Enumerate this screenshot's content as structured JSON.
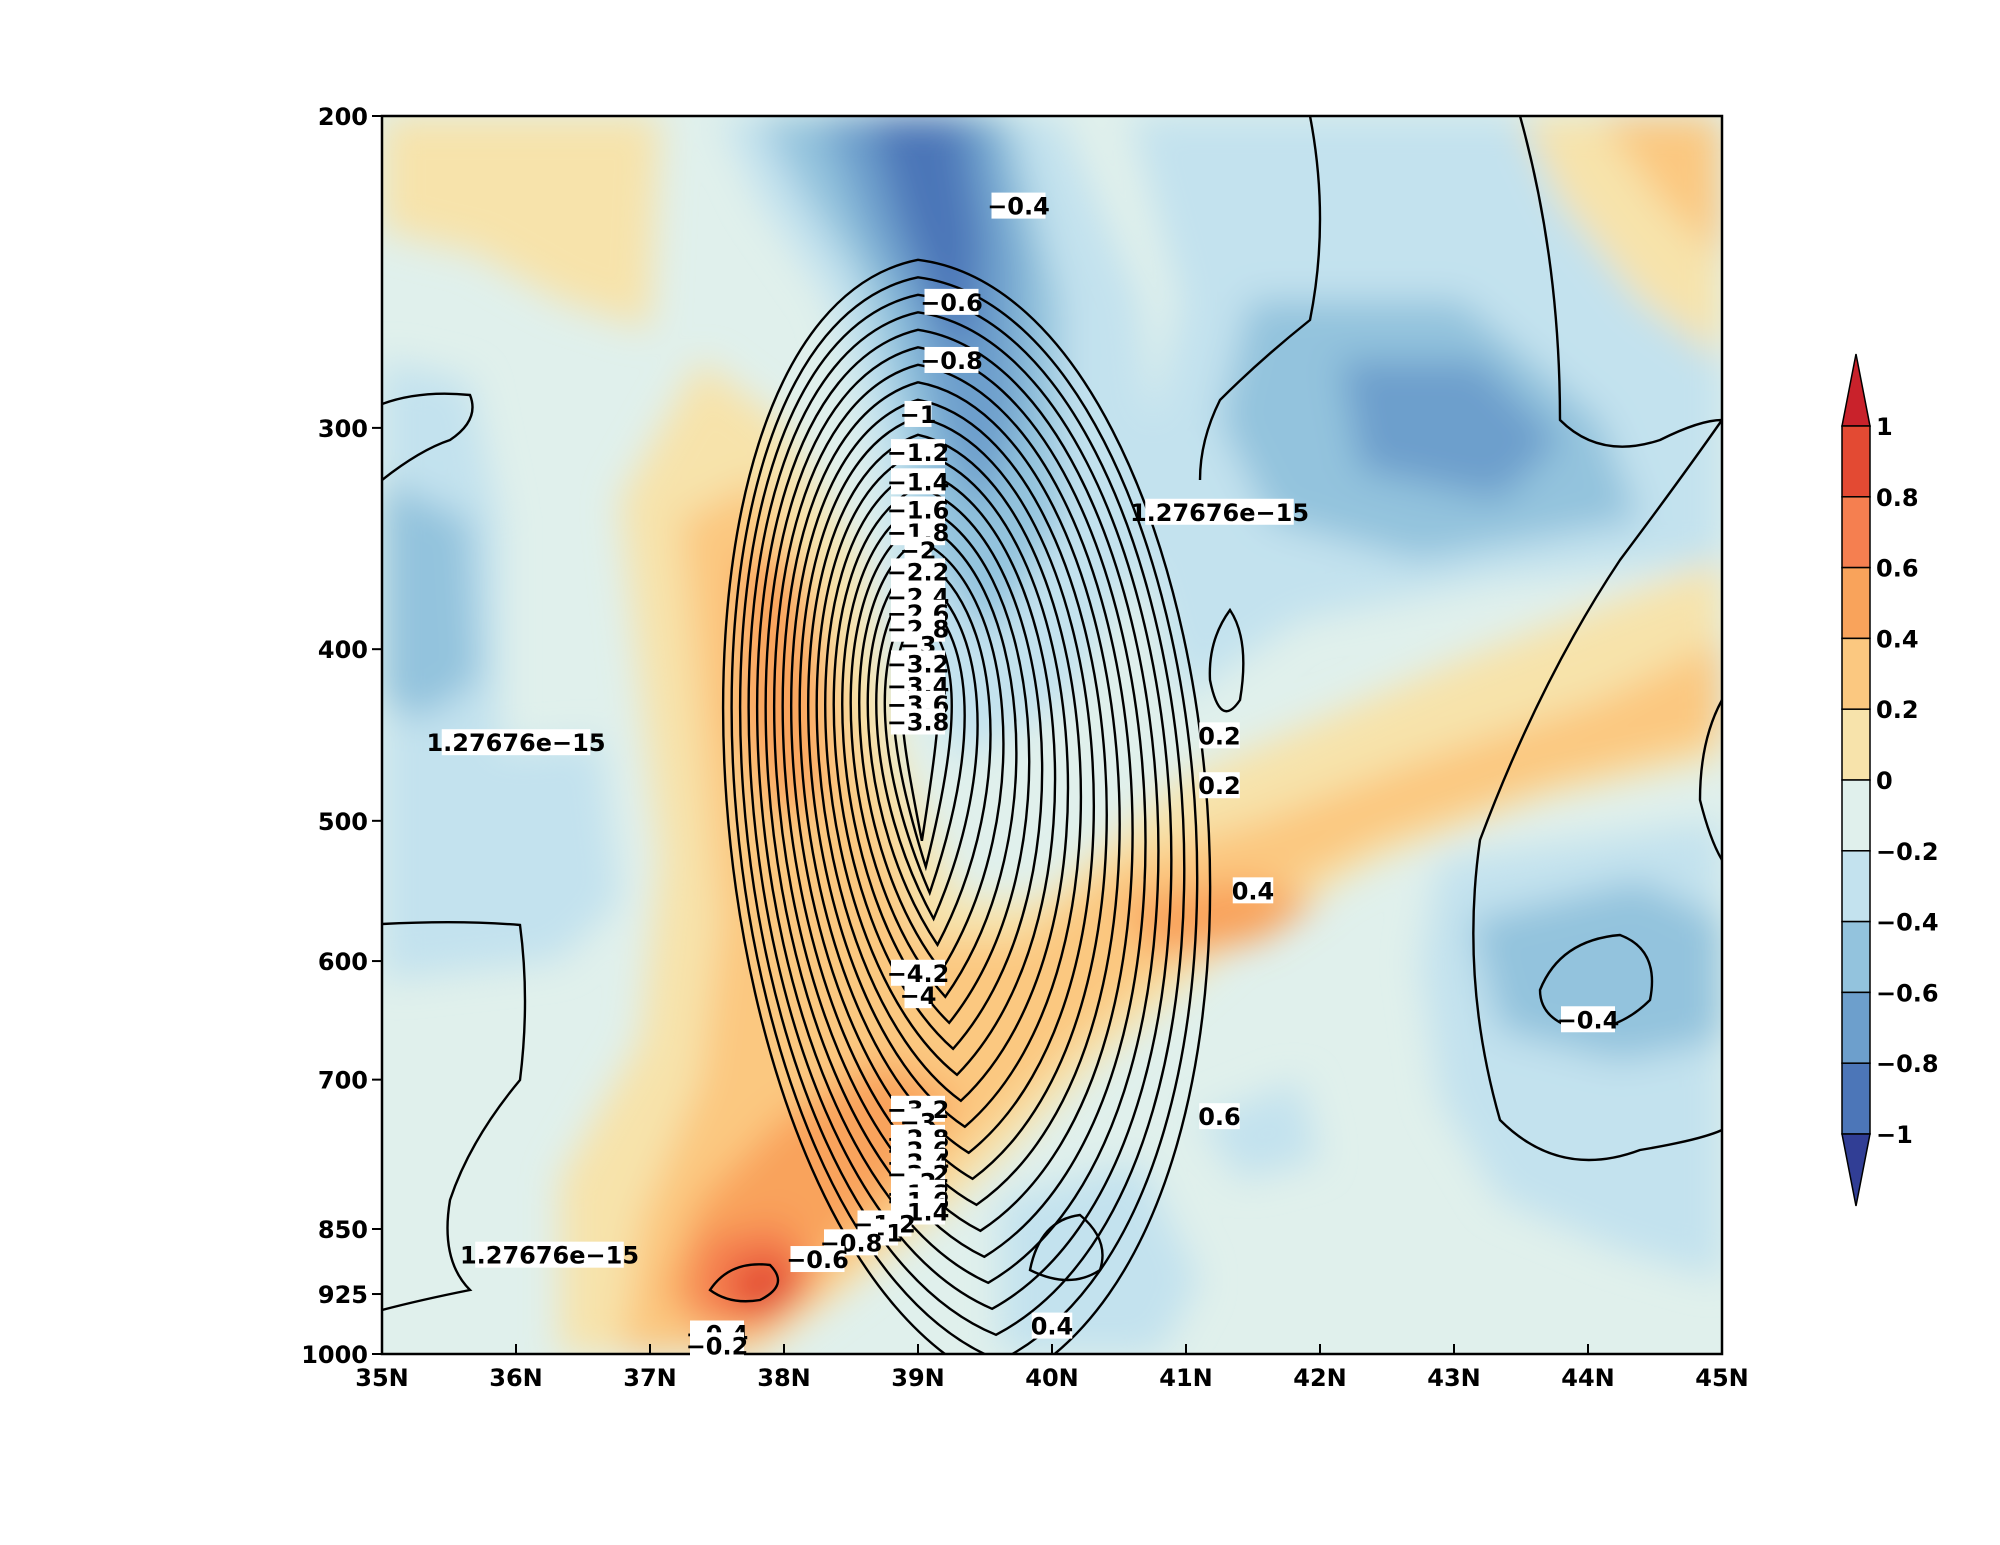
{
  "chart_data": {
    "type": "heatmap",
    "title": "",
    "xlabel": "",
    "ylabel": "",
    "x_axis": {
      "range": [
        35,
        45
      ],
      "ticks": [
        35,
        36,
        37,
        38,
        39,
        40,
        41,
        42,
        43,
        44,
        45
      ],
      "tick_labels": [
        "35N",
        "36N",
        "37N",
        "38N",
        "39N",
        "40N",
        "41N",
        "42N",
        "43N",
        "44N",
        "45N"
      ]
    },
    "y_axis": {
      "scale": "log-pressure",
      "direction": "inverted",
      "range": [
        1000,
        200
      ],
      "ticks": [
        200,
        300,
        400,
        500,
        600,
        700,
        850,
        925,
        1000
      ],
      "tick_labels": [
        "200",
        "300",
        "400",
        "500",
        "600",
        "700",
        "850",
        "925",
        "1000"
      ]
    },
    "colorbar": {
      "levels": [
        1,
        0.8,
        0.6,
        0.4,
        0.2,
        0,
        -0.2,
        -0.4,
        -0.6,
        -0.8,
        -1
      ],
      "labels": [
        "1",
        "0.8",
        "0.6",
        "0.4",
        "0.2",
        "0",
        "−0.2",
        "−0.4",
        "−0.6",
        "−0.8",
        "−1"
      ],
      "colors": [
        "#c9222b",
        "#e34a33",
        "#f57f50",
        "#f9a35b",
        "#fbc880",
        "#f7e3ab",
        "#e0f0ec",
        "#c3e2ee",
        "#93c3dd",
        "#6d9fcc",
        "#4c76b8",
        "#313e95"
      ],
      "extend": "both"
    },
    "shading_cells": [
      {
        "lat": 35.5,
        "p": 250,
        "v": 0.1
      },
      {
        "lat": 36.5,
        "p": 250,
        "v": 0.1
      },
      {
        "lat": 37.5,
        "p": 250,
        "v": -0.1
      },
      {
        "lat": 38.5,
        "p": 250,
        "v": -0.5
      },
      {
        "lat": 39.5,
        "p": 250,
        "v": -0.9
      },
      {
        "lat": 40.5,
        "p": 250,
        "v": -0.5
      },
      {
        "lat": 41.5,
        "p": 250,
        "v": -0.3
      },
      {
        "lat": 42.5,
        "p": 250,
        "v": -0.1
      },
      {
        "lat": 43.5,
        "p": 250,
        "v": -0.3
      },
      {
        "lat": 44.5,
        "p": 250,
        "v": 0.1
      },
      {
        "lat": 35.5,
        "p": 400,
        "v": -0.5
      },
      {
        "lat": 36.5,
        "p": 400,
        "v": -0.3
      },
      {
        "lat": 37.5,
        "p": 400,
        "v": 0.1
      },
      {
        "lat": 38.5,
        "p": 400,
        "v": 0.3
      },
      {
        "lat": 39.5,
        "p": 400,
        "v": -0.5
      },
      {
        "lat": 40.5,
        "p": 400,
        "v": -0.3
      },
      {
        "lat": 41.5,
        "p": 400,
        "v": -0.3
      },
      {
        "lat": 42.5,
        "p": 400,
        "v": -0.1
      },
      {
        "lat": 43.5,
        "p": 400,
        "v": 0.1
      },
      {
        "lat": 44.5,
        "p": 400,
        "v": 0.3
      },
      {
        "lat": 35.5,
        "p": 650,
        "v": -0.1
      },
      {
        "lat": 36.5,
        "p": 650,
        "v": -0.1
      },
      {
        "lat": 37.5,
        "p": 650,
        "v": 0.1
      },
      {
        "lat": 38.5,
        "p": 650,
        "v": 0.1
      },
      {
        "lat": 39.5,
        "p": 650,
        "v": 0.3
      },
      {
        "lat": 40.5,
        "p": 650,
        "v": 0.3
      },
      {
        "lat": 41.5,
        "p": 650,
        "v": 0.1
      },
      {
        "lat": 42.5,
        "p": 650,
        "v": -0.1
      },
      {
        "lat": 43.5,
        "p": 650,
        "v": -0.3
      },
      {
        "lat": 44.5,
        "p": 650,
        "v": -0.5
      },
      {
        "lat": 35.5,
        "p": 925,
        "v": -0.1
      },
      {
        "lat": 36.5,
        "p": 925,
        "v": 0.1
      },
      {
        "lat": 37.5,
        "p": 925,
        "v": 0.5
      },
      {
        "lat": 38.5,
        "p": 925,
        "v": 0.5
      },
      {
        "lat": 39.5,
        "p": 925,
        "v": 0.1
      },
      {
        "lat": 40.5,
        "p": 925,
        "v": -0.1
      },
      {
        "lat": 41.5,
        "p": 925,
        "v": -0.1
      },
      {
        "lat": 42.5,
        "p": 925,
        "v": -0.1
      },
      {
        "lat": 43.5,
        "p": 925,
        "v": -0.1
      },
      {
        "lat": 44.5,
        "p": 925,
        "v": -0.1
      }
    ],
    "contour_labels": [
      {
        "text": "−0.4",
        "lat": 39.75,
        "p": 225
      },
      {
        "text": "−0.6",
        "lat": 39.25,
        "p": 255
      },
      {
        "text": "−0.8",
        "lat": 39.25,
        "p": 275
      },
      {
        "text": "−1",
        "lat": 39.0,
        "p": 295
      },
      {
        "text": "−1.2",
        "lat": 39.0,
        "p": 310
      },
      {
        "text": "−1.4",
        "lat": 39.0,
        "p": 322
      },
      {
        "text": "−1.6",
        "lat": 39.0,
        "p": 334
      },
      {
        "text": "−1.8",
        "lat": 39.0,
        "p": 344
      },
      {
        "text": "−2",
        "lat": 39.0,
        "p": 352
      },
      {
        "text": "−2.2",
        "lat": 39.0,
        "p": 362
      },
      {
        "text": "−2.4",
        "lat": 39.0,
        "p": 374
      },
      {
        "text": "−2.6",
        "lat": 39.0,
        "p": 382
      },
      {
        "text": "−2.8",
        "lat": 39.0,
        "p": 390
      },
      {
        "text": "−3",
        "lat": 39.0,
        "p": 398
      },
      {
        "text": "−3.2",
        "lat": 39.0,
        "p": 408
      },
      {
        "text": "−3.4",
        "lat": 39.0,
        "p": 420
      },
      {
        "text": "−3.6",
        "lat": 39.0,
        "p": 430
      },
      {
        "text": "−3.8",
        "lat": 39.0,
        "p": 440
      },
      {
        "text": "−4.2",
        "lat": 39.0,
        "p": 610
      },
      {
        "text": "−4",
        "lat": 39.0,
        "p": 628
      },
      {
        "text": "−3.2",
        "lat": 39.0,
        "p": 728
      },
      {
        "text": "−3",
        "lat": 39.0,
        "p": 740
      },
      {
        "text": "−2.8",
        "lat": 39.0,
        "p": 756
      },
      {
        "text": "−2.6",
        "lat": 39.0,
        "p": 768
      },
      {
        "text": "−2.4",
        "lat": 39.0,
        "p": 780
      },
      {
        "text": "−2.2",
        "lat": 39.0,
        "p": 792
      },
      {
        "text": "−2",
        "lat": 39.0,
        "p": 800
      },
      {
        "text": "−1.8",
        "lat": 39.0,
        "p": 812
      },
      {
        "text": "−1.6",
        "lat": 39.0,
        "p": 820
      },
      {
        "text": "−1.4",
        "lat": 39.0,
        "p": 832
      },
      {
        "text": "−1.2",
        "lat": 38.75,
        "p": 845
      },
      {
        "text": "−1",
        "lat": 38.75,
        "p": 855
      },
      {
        "text": "−0.8",
        "lat": 38.5,
        "p": 866
      },
      {
        "text": "−0.6",
        "lat": 38.25,
        "p": 885
      },
      {
        "text": "−0.4",
        "lat": 37.5,
        "p": 975
      },
      {
        "text": "−0.2",
        "lat": 37.5,
        "p": 990
      },
      {
        "text": "1.27676e−15",
        "lat": 41.25,
        "p": 335
      },
      {
        "text": "1.27676e−15",
        "lat": 36.0,
        "p": 452
      },
      {
        "text": "1.27676e−15",
        "lat": 36.25,
        "p": 880
      },
      {
        "text": "0.2",
        "lat": 41.25,
        "p": 448
      },
      {
        "text": "0.2",
        "lat": 41.25,
        "p": 478
      },
      {
        "text": "0.4",
        "lat": 41.5,
        "p": 548
      },
      {
        "text": "0.4",
        "lat": 40.0,
        "p": 965
      },
      {
        "text": "0.6",
        "lat": 41.25,
        "p": 735
      },
      {
        "text": "−0.4",
        "lat": 44.0,
        "p": 648
      }
    ]
  }
}
